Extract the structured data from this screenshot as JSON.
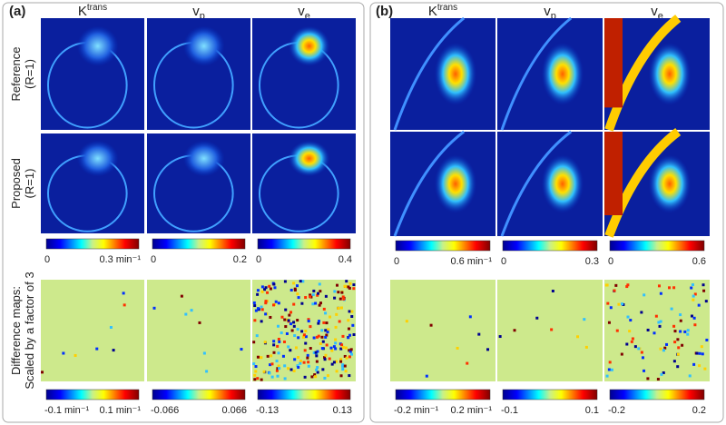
{
  "panels": [
    {
      "label": "(a)",
      "columns": [
        {
          "base": "K",
          "sup": "trans"
        },
        {
          "base": "v",
          "sub": "p"
        },
        {
          "base": "v",
          "sub": "e"
        }
      ],
      "rows": [
        {
          "label": "Reference",
          "sub_label": "(R=1)"
        },
        {
          "label": "Proposed",
          "sub_label": "(R=1)"
        }
      ],
      "colorbars": [
        {
          "min": "0",
          "max": "0.3 min⁻¹"
        },
        {
          "min": "0",
          "max": "0.2"
        },
        {
          "min": "0",
          "max": "0.4"
        }
      ],
      "difference": {
        "label": "Difference maps:",
        "sub_label": "Scaled by a factor of 3",
        "colorbars": [
          {
            "min": "-0.1 min⁻¹",
            "max": "0.1 min⁻¹"
          },
          {
            "min": "-0.066",
            "max": "0.066"
          },
          {
            "min": "-0.13",
            "max": "0.13"
          }
        ]
      }
    },
    {
      "label": "(b)",
      "columns": [
        {
          "base": "K",
          "sup": "trans"
        },
        {
          "base": "v",
          "sub": "p"
        },
        {
          "base": "v",
          "sub": "e"
        }
      ],
      "colorbars": [
        {
          "min": "0",
          "max": "0.6 min⁻¹"
        },
        {
          "min": "0",
          "max": "0.3"
        },
        {
          "min": "0",
          "max": "0.6"
        }
      ],
      "difference": {
        "colorbars": [
          {
            "min": "-0.2 min⁻¹",
            "max": "0.2 min⁻¹"
          },
          {
            "min": "-0.1",
            "max": "0.1"
          },
          {
            "min": "-0.2",
            "max": "0.2"
          }
        ]
      }
    }
  ]
}
